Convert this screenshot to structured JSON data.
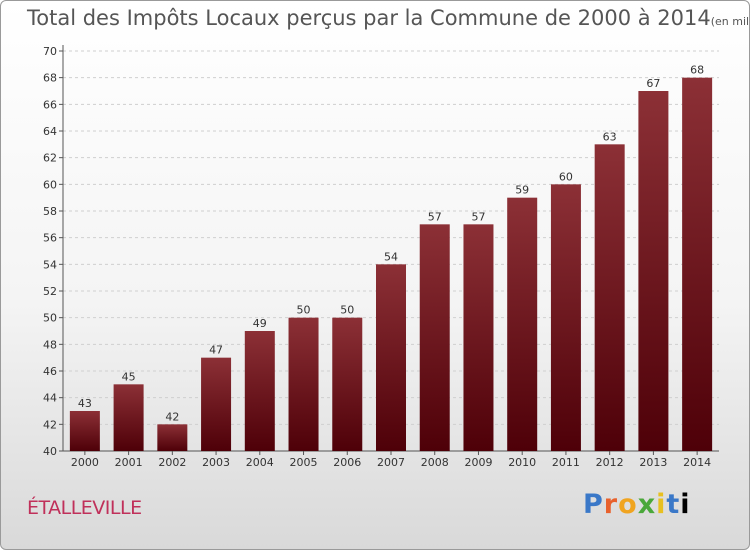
{
  "chart_data": {
    "type": "bar",
    "title": "Total des Impôts Locaux perçus par la Commune de 2000 à 2014",
    "unit_note": "(en milliers d'€)",
    "categories": [
      "2000",
      "2001",
      "2002",
      "2003",
      "2004",
      "2005",
      "2006",
      "2007",
      "2008",
      "2009",
      "2010",
      "2011",
      "2012",
      "2013",
      "2014"
    ],
    "values": [
      43,
      45,
      42,
      47,
      49,
      50,
      50,
      54,
      57,
      57,
      59,
      60,
      63,
      67,
      68
    ],
    "ylim": [
      40,
      70
    ],
    "yticks": [
      40,
      42,
      44,
      46,
      48,
      50,
      52,
      54,
      56,
      58,
      60,
      62,
      64,
      66,
      68,
      70
    ],
    "xlabel": "",
    "ylabel": "",
    "grid": true,
    "bar_color": "#7a1f28"
  },
  "commune_name": "ÉTALLEVILLE",
  "logo": {
    "letters": [
      "P",
      "r",
      "o",
      "x",
      "i",
      "t",
      "i"
    ],
    "text": "Proxiti"
  }
}
